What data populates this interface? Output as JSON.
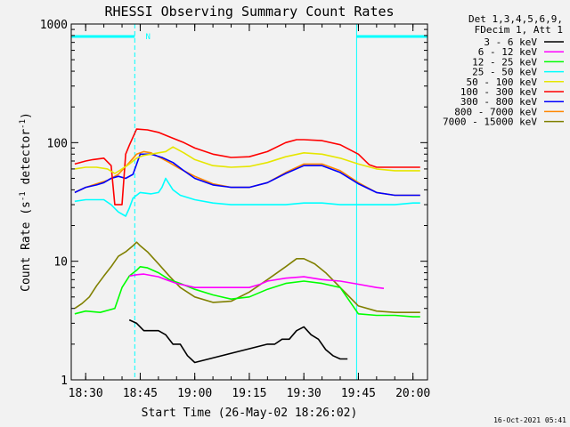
{
  "chart_data": {
    "type": "line",
    "title": "RHESSI Observing Summary Count Rates",
    "xlabel": "Start Time (26-May-02 18:26:02)",
    "ylabel": "Count Rate (s⁻¹ detector⁻¹)",
    "ylabel_main": "Count Rate (s",
    "ylabel_sup1": "-1",
    "ylabel_mid": " detector",
    "ylabel_sup2": "-1",
    "ylabel_end": ")",
    "y_scale": "log",
    "ylim": [
      1,
      1000
    ],
    "xlim": [
      "18:26:02",
      "20:04:00"
    ],
    "x_ticks": [
      "18:30",
      "18:45",
      "19:00",
      "19:15",
      "19:30",
      "19:45",
      "20:00"
    ],
    "y_ticks": [
      "1",
      "10",
      "100",
      "1000"
    ],
    "legend_header": [
      "Det 1,3,4,5,6,9,",
      "FDecim 1, Att 1"
    ],
    "legend_position": "right",
    "timestamp": "16-Oct-2021 05:41",
    "annotations": [
      {
        "text": "N",
        "x": "18:45"
      }
    ],
    "night_intervals": [
      [
        "18:26:02",
        "18:43:30"
      ],
      [
        "19:44:30",
        "20:04:00"
      ]
    ],
    "series": [
      {
        "name": "3 - 6 keV",
        "color": "#000000",
        "x": [
          "18:42",
          "18:44",
          "18:46",
          "18:48",
          "18:50",
          "18:52",
          "18:54",
          "18:56",
          "18:58",
          "19:00",
          "19:20",
          "19:22",
          "19:24",
          "19:26",
          "19:28",
          "19:30",
          "19:32",
          "19:34",
          "19:36",
          "19:38",
          "19:40",
          "19:42"
        ],
        "y": [
          3.2,
          3.0,
          2.6,
          2.6,
          2.6,
          2.4,
          2.0,
          2.0,
          1.6,
          1.4,
          2.0,
          2.0,
          2.2,
          2.2,
          2.6,
          2.8,
          2.4,
          2.2,
          1.8,
          1.6,
          1.5,
          1.5
        ]
      },
      {
        "name": "6 - 12 keV",
        "color": "#ff00ff",
        "x": [
          "18:42",
          "18:44",
          "18:46",
          "18:48",
          "18:50",
          "18:52",
          "18:55",
          "18:58",
          "19:00",
          "19:05",
          "19:10",
          "19:15",
          "19:18",
          "19:20",
          "19:25",
          "19:30",
          "19:35",
          "19:40",
          "19:45",
          "19:50",
          "19:52"
        ],
        "y": [
          7.5,
          7.7,
          7.8,
          7.6,
          7.4,
          7.0,
          6.5,
          6.2,
          6.0,
          6.0,
          6.0,
          6.0,
          6.4,
          6.8,
          7.2,
          7.4,
          7.0,
          6.8,
          6.4,
          6.0,
          5.9
        ]
      },
      {
        "name": "12 - 25 keV",
        "color": "#00ff00",
        "x": [
          "18:27",
          "18:30",
          "18:34",
          "18:38",
          "18:40",
          "18:42",
          "18:44",
          "18:45",
          "18:47",
          "18:50",
          "18:53",
          "18:56",
          "19:00",
          "19:05",
          "19:10",
          "19:15",
          "19:20",
          "19:25",
          "19:30",
          "19:35",
          "19:40",
          "19:45",
          "19:50",
          "19:55",
          "20:00",
          "20:02"
        ],
        "y": [
          3.6,
          3.8,
          3.7,
          4.0,
          6.0,
          7.5,
          8.4,
          9.0,
          8.8,
          8.0,
          7.0,
          6.5,
          5.8,
          5.2,
          4.8,
          5.0,
          5.8,
          6.5,
          6.8,
          6.5,
          6.0,
          3.6,
          3.5,
          3.5,
          3.4,
          3.4
        ]
      },
      {
        "name": "25 - 50 keV",
        "color": "#00ffff",
        "x": [
          "18:27",
          "18:30",
          "18:33",
          "18:35",
          "18:37",
          "18:39",
          "18:41",
          "18:42",
          "18:43",
          "18:45",
          "18:48",
          "18:50",
          "18:51",
          "18:52",
          "18:54",
          "18:56",
          "19:00",
          "19:05",
          "19:10",
          "19:15",
          "19:20",
          "19:25",
          "19:30",
          "19:35",
          "19:40",
          "19:45",
          "19:50",
          "19:55",
          "20:00",
          "20:02"
        ],
        "y": [
          32,
          33,
          33,
          33,
          30,
          26,
          24,
          28,
          34,
          38,
          37,
          38,
          42,
          50,
          40,
          36,
          33,
          31,
          30,
          30,
          30,
          30,
          31,
          31,
          30,
          30,
          30,
          30,
          31,
          31
        ]
      },
      {
        "name": "50 - 100 keV",
        "color": "#e6e600",
        "x": [
          "18:27",
          "18:30",
          "18:33",
          "18:36",
          "18:38",
          "18:40",
          "18:42",
          "18:44",
          "18:46",
          "18:48",
          "18:50",
          "18:52",
          "18:54",
          "18:57",
          "19:00",
          "19:05",
          "19:10",
          "19:15",
          "19:20",
          "19:25",
          "19:30",
          "19:35",
          "19:40",
          "19:45",
          "19:50",
          "19:55",
          "20:00",
          "20:02"
        ],
        "y": [
          60,
          62,
          62,
          60,
          55,
          60,
          66,
          74,
          78,
          80,
          82,
          84,
          92,
          82,
          72,
          64,
          62,
          63,
          68,
          76,
          82,
          80,
          74,
          66,
          60,
          58,
          58,
          58
        ]
      },
      {
        "name": "100 - 300 keV",
        "color": "#ff0000",
        "x": [
          "18:27",
          "18:30",
          "18:32",
          "18:35",
          "18:37",
          "18:38",
          "18:40",
          "18:41",
          "18:42",
          "18:44",
          "18:47",
          "18:50",
          "18:53",
          "18:57",
          "19:00",
          "19:05",
          "19:10",
          "19:15",
          "19:20",
          "19:25",
          "19:28",
          "19:30",
          "19:35",
          "19:40",
          "19:45",
          "19:48",
          "19:50",
          "19:55",
          "20:00",
          "20:02"
        ],
        "y": [
          66,
          70,
          72,
          74,
          64,
          30,
          30,
          80,
          95,
          130,
          128,
          122,
          112,
          100,
          90,
          80,
          75,
          76,
          84,
          100,
          106,
          106,
          104,
          96,
          80,
          65,
          62,
          62,
          62,
          62
        ]
      },
      {
        "name": "300 - 800 keV",
        "color": "#0000ff",
        "x": [
          "18:27",
          "18:30",
          "18:33",
          "18:35",
          "18:37",
          "18:39",
          "18:41",
          "18:43",
          "18:45",
          "18:48",
          "18:51",
          "18:54",
          "18:57",
          "19:00",
          "19:05",
          "19:10",
          "19:15",
          "19:20",
          "19:25",
          "19:30",
          "19:35",
          "19:40",
          "19:45",
          "19:50",
          "19:55",
          "20:00",
          "20:02"
        ],
        "y": [
          38,
          42,
          44,
          46,
          50,
          52,
          50,
          54,
          80,
          80,
          75,
          68,
          58,
          50,
          44,
          42,
          42,
          46,
          55,
          64,
          64,
          56,
          45,
          38,
          36,
          36,
          36
        ]
      },
      {
        "name": "800 - 7000 keV",
        "color": "#ff8800",
        "x": [
          "18:27",
          "18:30",
          "18:33",
          "18:36",
          "18:39",
          "18:42",
          "18:44",
          "18:46",
          "18:48",
          "18:50",
          "18:53",
          "18:56",
          "19:00",
          "19:05",
          "19:10",
          "19:15",
          "19:20",
          "19:25",
          "19:30",
          "19:35",
          "19:40",
          "19:45",
          "19:50",
          "19:55",
          "20:00",
          "20:02"
        ],
        "y": [
          38,
          42,
          45,
          48,
          54,
          68,
          80,
          84,
          82,
          76,
          68,
          60,
          52,
          45,
          42,
          42,
          46,
          56,
          66,
          66,
          58,
          46,
          38,
          36,
          36,
          36
        ]
      },
      {
        "name": "7000 - 15000 keV",
        "color": "#808000",
        "x": [
          "18:27",
          "18:29",
          "18:31",
          "18:33",
          "18:35",
          "18:37",
          "18:39",
          "18:41",
          "18:43",
          "18:44",
          "18:45",
          "18:47",
          "18:50",
          "18:53",
          "18:56",
          "19:00",
          "19:05",
          "19:10",
          "19:15",
          "19:20",
          "19:25",
          "19:28",
          "19:30",
          "19:33",
          "19:36",
          "19:40",
          "19:45",
          "19:50",
          "19:55",
          "20:00",
          "20:02"
        ],
        "y": [
          4.0,
          4.4,
          5.0,
          6.2,
          7.5,
          9.0,
          11.0,
          12.0,
          13.5,
          14.5,
          13.5,
          12.0,
          9.5,
          7.5,
          6.0,
          5.0,
          4.5,
          4.6,
          5.5,
          7.0,
          9.0,
          10.5,
          10.5,
          9.5,
          8.0,
          6.0,
          4.2,
          3.8,
          3.7,
          3.7,
          3.7
        ]
      }
    ]
  }
}
